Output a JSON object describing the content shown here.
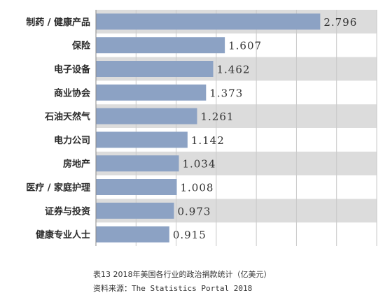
{
  "chart_data": {
    "type": "bar",
    "orientation": "horizontal",
    "categories": [
      "制药 / 健康产品",
      "保险",
      "电子设备",
      "商业协会",
      "石油天然气",
      "电力公司",
      "房地产",
      "医疗 / 家庭护理",
      "证券与投资",
      "健康专业人士"
    ],
    "values": [
      2.796,
      1.607,
      1.462,
      1.373,
      1.261,
      1.142,
      1.034,
      1.008,
      0.973,
      0.915
    ],
    "value_labels": [
      "2.796",
      "1.607",
      "1.462",
      "1.373",
      "1.261",
      "1.142",
      "1.034",
      "1.008",
      "0.973",
      "0.915"
    ],
    "xlim": [
      0,
      3.5
    ],
    "grid": "vertical",
    "bar_color": "#8ca2c4",
    "band_color": "#dcdcdc"
  },
  "caption": {
    "title": "表13 2018年美国各行业的政治捐款统计（亿美元）",
    "source": "资料来源：The Statistics Portal 2018"
  }
}
